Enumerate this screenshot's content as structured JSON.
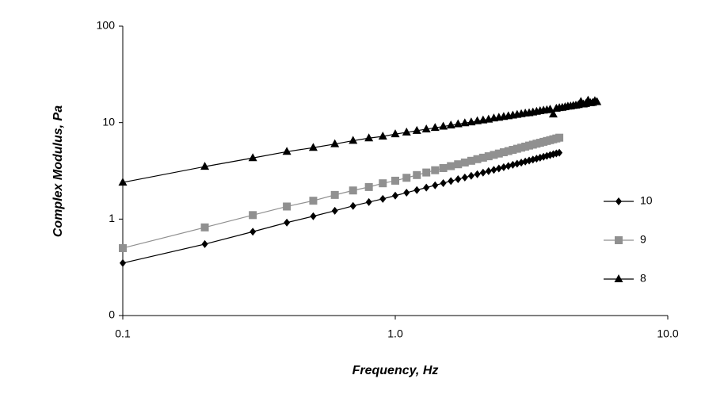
{
  "chart_data": {
    "type": "line",
    "xlabel": "Frequency, Hz",
    "ylabel": "Complex Modulus, Pa",
    "xscale": "log",
    "yscale": "log",
    "xlim": [
      0.1,
      10
    ],
    "xticks": [
      {
        "value": 0.1,
        "label": "0.1"
      },
      {
        "value": 1,
        "label": "1.0"
      },
      {
        "value": 10,
        "label": "10.0"
      }
    ],
    "ylim": [
      0.1,
      100
    ],
    "yticks": [
      {
        "value": 0.1,
        "label": "0"
      },
      1,
      10,
      100
    ],
    "grid": false,
    "legend": "right",
    "series": [
      {
        "name": "10",
        "color": "#000000",
        "marker": "diamond",
        "x": [
          0.1,
          0.2,
          0.3,
          0.4,
          0.5,
          0.6,
          0.7,
          0.8,
          0.9,
          1.0,
          1.1,
          1.2,
          1.3,
          1.4,
          1.5,
          1.6,
          1.7,
          1.8,
          1.9,
          2.0,
          2.1,
          2.2,
          2.3,
          2.4,
          2.5,
          2.6,
          2.7,
          2.8,
          2.9,
          3.0,
          3.1,
          3.2,
          3.3,
          3.4,
          3.5,
          3.6,
          3.7,
          3.8,
          3.9,
          4.0
        ],
        "values": [
          0.35,
          0.55,
          0.74,
          0.92,
          1.07,
          1.22,
          1.37,
          1.5,
          1.62,
          1.75,
          1.88,
          2.0,
          2.12,
          2.24,
          2.36,
          2.48,
          2.59,
          2.7,
          2.81,
          2.92,
          3.03,
          3.14,
          3.24,
          3.35,
          3.45,
          3.55,
          3.65,
          3.75,
          3.85,
          3.95,
          4.04,
          4.14,
          4.23,
          4.33,
          4.42,
          4.52,
          4.61,
          4.7,
          4.79,
          4.88
        ]
      },
      {
        "name": "9",
        "color": "#909090",
        "marker": "square",
        "x": [
          0.1,
          0.2,
          0.3,
          0.4,
          0.5,
          0.6,
          0.7,
          0.8,
          0.9,
          1.0,
          1.1,
          1.2,
          1.3,
          1.4,
          1.5,
          1.6,
          1.7,
          1.8,
          1.9,
          2.0,
          2.1,
          2.2,
          2.3,
          2.4,
          2.5,
          2.6,
          2.7,
          2.8,
          2.9,
          3.0,
          3.1,
          3.2,
          3.3,
          3.4,
          3.5,
          3.6,
          3.7,
          3.8,
          3.9,
          4.0
        ],
        "values": [
          0.5,
          0.82,
          1.1,
          1.35,
          1.55,
          1.78,
          1.98,
          2.15,
          2.35,
          2.5,
          2.68,
          2.86,
          3.04,
          3.21,
          3.38,
          3.54,
          3.7,
          3.86,
          4.02,
          4.18,
          4.33,
          4.48,
          4.63,
          4.78,
          4.93,
          5.07,
          5.22,
          5.36,
          5.5,
          5.64,
          5.78,
          5.91,
          6.05,
          6.18,
          6.32,
          6.45,
          6.58,
          6.72,
          6.85,
          6.98
        ]
      },
      {
        "name": "8",
        "color": "#000000",
        "marker": "triangle",
        "x": [
          0.1,
          0.2,
          0.3,
          0.4,
          0.5,
          0.6,
          0.7,
          0.8,
          0.9,
          1.0,
          1.1,
          1.2,
          1.3,
          1.4,
          1.5,
          1.6,
          1.7,
          1.8,
          1.9,
          2.0,
          2.1,
          2.2,
          2.3,
          2.4,
          2.5,
          2.6,
          2.7,
          2.8,
          2.9,
          3.0,
          3.1,
          3.2,
          3.3,
          3.4,
          3.5,
          3.6,
          3.7,
          3.8,
          3.9,
          4.0,
          4.1,
          4.2,
          4.3,
          4.4,
          4.5,
          4.6,
          4.7,
          4.8,
          4.9,
          5.0,
          5.1,
          5.2,
          5.3,
          5.4,
          5.5
        ],
        "values": [
          2.4,
          3.5,
          4.3,
          5.0,
          5.5,
          6.0,
          6.5,
          6.9,
          7.2,
          7.6,
          7.93,
          8.25,
          8.55,
          8.84,
          9.12,
          9.39,
          9.65,
          9.9,
          10.1,
          10.4,
          10.6,
          10.8,
          11.1,
          11.3,
          11.5,
          11.7,
          11.9,
          12.1,
          12.3,
          12.5,
          12.6,
          12.8,
          13.0,
          13.2,
          13.4,
          13.5,
          13.7,
          12.2,
          14.0,
          14.2,
          14.3,
          14.5,
          14.7,
          14.8,
          15.0,
          15.1,
          15.3,
          16.5,
          15.5,
          15.7,
          17.0,
          16.0,
          16.1,
          16.8,
          16.4
        ]
      }
    ]
  }
}
